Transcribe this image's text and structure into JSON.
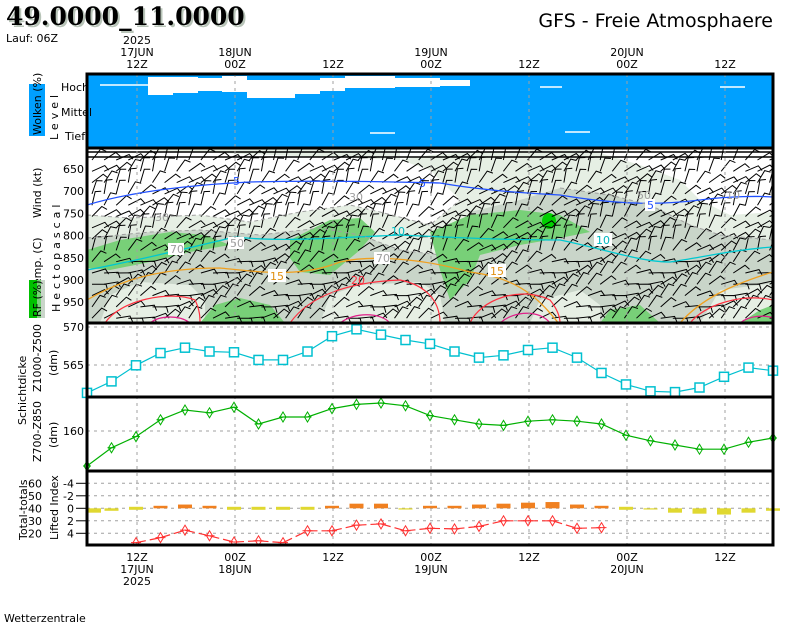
{
  "header": {
    "location": "49.0000_11.0000",
    "run": "Lauf: 06Z",
    "model_title": "GFS - Freie Atmosphaere"
  },
  "footer": {
    "source": "Wetterzentrale"
  },
  "time_axis": {
    "year": "2025",
    "ticks": [
      {
        "hour": "12Z",
        "date": "17JUN"
      },
      {
        "hour": "00Z",
        "date": "18JUN"
      },
      {
        "hour": "12Z",
        "date": ""
      },
      {
        "hour": "00Z",
        "date": "19JUN"
      },
      {
        "hour": "12Z",
        "date": ""
      },
      {
        "hour": "00Z",
        "date": "20JUN"
      },
      {
        "hour": "12Z",
        "date": ""
      }
    ]
  },
  "cloud_panel": {
    "title": "Wolken (%)",
    "level_label": "Level",
    "levels": [
      "Hoch",
      "Mittel",
      "Tief"
    ]
  },
  "wind_panel": {
    "wind_label": "Wind (kt)",
    "temp_label": "Temp. (C)",
    "rh_label": "RF (%)",
    "pressure_label": "Hectopascal",
    "pressure_levels": [
      "650",
      "700",
      "750",
      "800",
      "850",
      "900",
      "950"
    ],
    "contour_labels": {
      "t5a": "5",
      "t5b": "5",
      "t5c": "5",
      "t10a": "10",
      "t10b": "10",
      "t15a": "15",
      "t15b": "15",
      "t20": "20",
      "rh30a": "30",
      "rh30b": "30",
      "rh10": "10",
      "rh70a": "70",
      "rh70b": "70",
      "rh50a": "50",
      "rh50b": "50"
    }
  },
  "thickness_panel": {
    "title": "Schichtdicke",
    "series1_label": "Z1000-Z500",
    "series2_label": "Z700-Z850",
    "unit": "(dm)",
    "unit2": "(dm)",
    "ticks1": [
      "570",
      "565"
    ],
    "ticks2": [
      "160"
    ]
  },
  "stability_panel": {
    "li_label": "Lifted Index",
    "tt_label": "Total-totals",
    "li_ticks": [
      "-4",
      "-2",
      "0",
      "2",
      "4"
    ],
    "tt_ticks": [
      "60",
      "50",
      "40",
      "30",
      "20"
    ]
  },
  "colors": {
    "cloud": "#00a0ff",
    "z500": "#00c0d0",
    "z850": "#00b000",
    "li": "#ff3030",
    "tt_high": "#f08020",
    "tt_low": "#e0d830",
    "rh_green": "#78d078",
    "rh_gray": "#c9d5c9",
    "rh_light": "#e6efe4"
  },
  "chart_data": [
    {
      "type": "line",
      "title": "Schichtdicke Z1000-Z500",
      "ylabel": "(dm)",
      "ylim": [
        560.5,
        570.5
      ],
      "x": [
        "06Z 17JUN",
        "09Z",
        "12Z",
        "15Z",
        "18Z",
        "21Z",
        "00Z 18JUN",
        "03Z",
        "06Z",
        "09Z",
        "12Z",
        "15Z",
        "18Z",
        "21Z",
        "00Z 19JUN",
        "03Z",
        "06Z",
        "09Z",
        "12Z",
        "15Z",
        "18Z",
        "21Z",
        "00Z 20JUN",
        "03Z",
        "06Z",
        "09Z",
        "12Z",
        "15Z",
        "18Z"
      ],
      "values": [
        561.4,
        562.9,
        565.0,
        566.6,
        567.3,
        566.8,
        566.7,
        565.7,
        565.7,
        566.8,
        568.8,
        569.7,
        569.0,
        568.3,
        567.8,
        566.8,
        566.0,
        566.3,
        567.0,
        567.3,
        566.0,
        564.0,
        562.5,
        561.6,
        561.5,
        562.1,
        563.5,
        564.7,
        564.3
      ]
    },
    {
      "type": "line",
      "title": "Schichtdicke Z700-Z850",
      "ylabel": "(dm)",
      "values": [
        157.5,
        158.8,
        159.6,
        160.8,
        161.5,
        161.3,
        161.7,
        160.5,
        161.0,
        161.0,
        161.6,
        161.9,
        162.0,
        161.8,
        161.1,
        160.8,
        160.5,
        160.4,
        160.7,
        160.8,
        160.7,
        160.5,
        159.7,
        159.3,
        159.0,
        158.7,
        158.7,
        159.2,
        159.5
      ]
    },
    {
      "type": "line",
      "title": "Lifted Index",
      "ylim": [
        -5,
        6
      ],
      "values": [
        null,
        null,
        5.5,
        4.7,
        3.5,
        4.4,
        5.4,
        5.2,
        5.5,
        3.6,
        3.6,
        2.7,
        2.5,
        3.6,
        3.2,
        3.3,
        2.9,
        2.0,
        2.0,
        2.0,
        3.2,
        3.1,
        null,
        null,
        null,
        null,
        null,
        null,
        null
      ]
    },
    {
      "type": "bar",
      "title": "Total-totals",
      "ylim": [
        20,
        60
      ],
      "values": [
        36.5,
        38,
        40.2,
        42,
        43,
        42,
        40.3,
        40.2,
        40.2,
        40.2,
        42,
        43.7,
        43.7,
        39,
        42,
        42,
        43,
        43.7,
        44.5,
        45,
        43,
        42,
        40.2,
        39,
        36.5,
        35.7,
        35,
        36.5,
        38
      ]
    }
  ]
}
